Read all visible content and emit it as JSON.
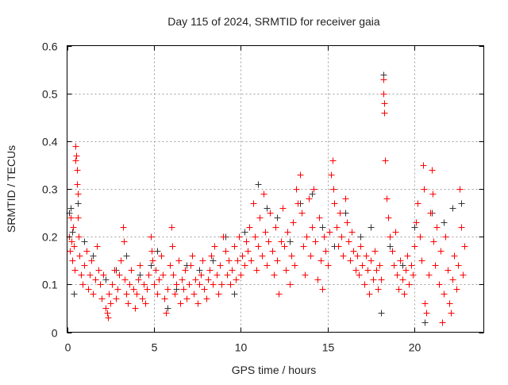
{
  "chart_data": {
    "type": "scatter",
    "title": "Day 115 of 2024, SRMTID for receiver gaia",
    "xlabel": "GPS time / hours",
    "ylabel": "SRMTID / TECUs",
    "xlim": [
      0,
      24
    ],
    "ylim": [
      0,
      0.6
    ],
    "xticks": [
      0,
      5,
      10,
      15,
      20
    ],
    "xtick_labels": [
      "0",
      "5",
      "10",
      "15",
      "20"
    ],
    "yticks": [
      0,
      0.1,
      0.2,
      0.3,
      0.4,
      0.5,
      0.6
    ],
    "ytick_labels": [
      "0",
      "0.1",
      "0.2",
      "0.3",
      "0.4",
      "0.5",
      "0.6"
    ],
    "grid": true,
    "marker": "plus",
    "series": [
      {
        "name": "red",
        "color": "#ff0000",
        "points": [
          [
            0.1,
            0.2
          ],
          [
            0.15,
            0.17
          ],
          [
            0.2,
            0.24
          ],
          [
            0.25,
            0.19
          ],
          [
            0.3,
            0.15
          ],
          [
            0.35,
            0.22
          ],
          [
            0.4,
            0.18
          ],
          [
            0.45,
            0.13
          ],
          [
            0.5,
            0.39
          ],
          [
            0.52,
            0.37
          ],
          [
            0.55,
            0.34
          ],
          [
            0.58,
            0.31
          ],
          [
            0.6,
            0.29
          ],
          [
            0.5,
            0.36
          ],
          [
            0.62,
            0.24
          ],
          [
            0.65,
            0.2
          ],
          [
            0.7,
            0.16
          ],
          [
            0.8,
            0.12
          ],
          [
            0.9,
            0.1
          ],
          [
            1.0,
            0.14
          ],
          [
            1.1,
            0.17
          ],
          [
            1.2,
            0.09
          ],
          [
            1.3,
            0.12
          ],
          [
            1.4,
            0.15
          ],
          [
            1.5,
            0.08
          ],
          [
            1.6,
            0.11
          ],
          [
            1.7,
            0.18
          ],
          [
            1.8,
            0.13
          ],
          [
            1.9,
            0.1
          ],
          [
            2.0,
            0.07
          ],
          [
            2.1,
            0.12
          ],
          [
            2.2,
            0.05
          ],
          [
            2.3,
            0.04
          ],
          [
            2.35,
            0.03
          ],
          [
            2.4,
            0.08
          ],
          [
            2.5,
            0.06
          ],
          [
            2.6,
            0.1
          ],
          [
            2.7,
            0.13
          ],
          [
            2.8,
            0.07
          ],
          [
            2.9,
            0.09
          ],
          [
            3.0,
            0.12
          ],
          [
            3.1,
            0.15
          ],
          [
            3.2,
            0.22
          ],
          [
            3.25,
            0.19
          ],
          [
            3.3,
            0.11
          ],
          [
            3.4,
            0.08
          ],
          [
            3.5,
            0.06
          ],
          [
            3.6,
            0.1
          ],
          [
            3.7,
            0.13
          ],
          [
            3.8,
            0.09
          ],
          [
            3.9,
            0.05
          ],
          [
            4.0,
            0.08
          ],
          [
            4.1,
            0.11
          ],
          [
            4.2,
            0.14
          ],
          [
            4.3,
            0.07
          ],
          [
            4.4,
            0.1
          ],
          [
            4.5,
            0.06
          ],
          [
            4.6,
            0.09
          ],
          [
            4.7,
            0.12
          ],
          [
            4.8,
            0.2
          ],
          [
            4.85,
            0.17
          ],
          [
            4.9,
            0.15
          ],
          [
            5.0,
            0.1
          ],
          [
            5.1,
            0.13
          ],
          [
            5.2,
            0.08
          ],
          [
            5.3,
            0.11
          ],
          [
            5.4,
            0.16
          ],
          [
            5.5,
            0.12
          ],
          [
            5.6,
            0.07
          ],
          [
            5.7,
            0.04
          ],
          [
            5.8,
            0.09
          ],
          [
            5.9,
            0.14
          ],
          [
            6.0,
            0.22
          ],
          [
            6.05,
            0.18
          ],
          [
            6.1,
            0.12
          ],
          [
            6.2,
            0.08
          ],
          [
            6.3,
            0.1
          ],
          [
            6.4,
            0.15
          ],
          [
            6.5,
            0.06
          ],
          [
            6.6,
            0.11
          ],
          [
            6.7,
            0.09
          ],
          [
            6.8,
            0.13
          ],
          [
            6.9,
            0.07
          ],
          [
            7.0,
            0.1
          ],
          [
            7.1,
            0.14
          ],
          [
            7.2,
            0.16
          ],
          [
            7.3,
            0.08
          ],
          [
            7.4,
            0.11
          ],
          [
            7.5,
            0.06
          ],
          [
            7.6,
            0.1
          ],
          [
            7.7,
            0.12
          ],
          [
            7.8,
            0.15
          ],
          [
            7.9,
            0.09
          ],
          [
            8.0,
            0.07
          ],
          [
            8.1,
            0.11
          ],
          [
            8.2,
            0.13
          ],
          [
            8.3,
            0.16
          ],
          [
            8.4,
            0.1
          ],
          [
            8.5,
            0.18
          ],
          [
            8.6,
            0.12
          ],
          [
            8.7,
            0.08
          ],
          [
            8.8,
            0.14
          ],
          [
            8.9,
            0.1
          ],
          [
            9.0,
            0.2
          ],
          [
            9.1,
            0.17
          ],
          [
            9.2,
            0.12
          ],
          [
            9.3,
            0.15
          ],
          [
            9.4,
            0.1
          ],
          [
            9.5,
            0.13
          ],
          [
            9.6,
            0.18
          ],
          [
            9.7,
            0.11
          ],
          [
            9.8,
            0.15
          ],
          [
            9.9,
            0.2
          ],
          [
            10.0,
            0.12
          ],
          [
            10.1,
            0.16
          ],
          [
            10.2,
            0.14
          ],
          [
            10.3,
            0.19
          ],
          [
            10.4,
            0.17
          ],
          [
            10.5,
            0.22
          ],
          [
            10.6,
            0.15
          ],
          [
            10.7,
            0.27
          ],
          [
            10.8,
            0.2
          ],
          [
            10.9,
            0.13
          ],
          [
            11.0,
            0.18
          ],
          [
            11.1,
            0.24
          ],
          [
            11.2,
            0.16
          ],
          [
            11.3,
            0.29
          ],
          [
            11.4,
            0.21
          ],
          [
            11.5,
            0.14
          ],
          [
            11.6,
            0.19
          ],
          [
            11.7,
            0.25
          ],
          [
            11.8,
            0.17
          ],
          [
            11.9,
            0.12
          ],
          [
            12.0,
            0.22
          ],
          [
            12.1,
            0.15
          ],
          [
            12.2,
            0.08
          ],
          [
            12.3,
            0.19
          ],
          [
            12.4,
            0.26
          ],
          [
            12.5,
            0.18
          ],
          [
            12.6,
            0.13
          ],
          [
            12.7,
            0.21
          ],
          [
            12.8,
            0.1
          ],
          [
            12.9,
            0.16
          ],
          [
            13.0,
            0.23
          ],
          [
            13.1,
            0.14
          ],
          [
            13.2,
            0.3
          ],
          [
            13.3,
            0.27
          ],
          [
            13.4,
            0.33
          ],
          [
            13.5,
            0.25
          ],
          [
            13.6,
            0.18
          ],
          [
            13.7,
            0.12
          ],
          [
            13.8,
            0.2
          ],
          [
            13.9,
            0.28
          ],
          [
            14.0,
            0.16
          ],
          [
            14.1,
            0.22
          ],
          [
            14.2,
            0.3
          ],
          [
            14.3,
            0.19
          ],
          [
            14.4,
            0.11
          ],
          [
            14.5,
            0.24
          ],
          [
            14.6,
            0.15
          ],
          [
            14.7,
            0.09
          ],
          [
            14.8,
            0.2
          ],
          [
            14.9,
            0.17
          ],
          [
            15.0,
            0.14
          ],
          [
            15.1,
            0.21
          ],
          [
            15.2,
            0.33
          ],
          [
            15.3,
            0.36
          ],
          [
            15.35,
            0.3
          ],
          [
            15.4,
            0.27
          ],
          [
            15.5,
            0.22
          ],
          [
            15.6,
            0.18
          ],
          [
            15.7,
            0.25
          ],
          [
            15.8,
            0.2
          ],
          [
            15.9,
            0.16
          ],
          [
            16.0,
            0.28
          ],
          [
            16.1,
            0.23
          ],
          [
            16.2,
            0.19
          ],
          [
            16.3,
            0.15
          ],
          [
            16.4,
            0.21
          ],
          [
            16.5,
            0.17
          ],
          [
            16.6,
            0.13
          ],
          [
            16.7,
            0.16
          ],
          [
            16.8,
            0.12
          ],
          [
            16.9,
            0.18
          ],
          [
            17.0,
            0.14
          ],
          [
            17.1,
            0.1
          ],
          [
            17.2,
            0.16
          ],
          [
            17.3,
            0.13
          ],
          [
            17.4,
            0.08
          ],
          [
            17.5,
            0.15
          ],
          [
            17.6,
            0.11
          ],
          [
            17.7,
            0.17
          ],
          [
            17.8,
            0.13
          ],
          [
            17.9,
            0.09
          ],
          [
            18.0,
            0.14
          ],
          [
            18.1,
            0.11
          ],
          [
            18.2,
            0.53
          ],
          [
            18.22,
            0.5
          ],
          [
            18.25,
            0.48
          ],
          [
            18.27,
            0.46
          ],
          [
            18.3,
            0.36
          ],
          [
            18.4,
            0.28
          ],
          [
            18.5,
            0.24
          ],
          [
            18.6,
            0.2
          ],
          [
            18.7,
            0.17
          ],
          [
            18.8,
            0.14
          ],
          [
            18.9,
            0.21
          ],
          [
            19.0,
            0.12
          ],
          [
            19.1,
            0.09
          ],
          [
            19.2,
            0.15
          ],
          [
            19.3,
            0.11
          ],
          [
            19.4,
            0.08
          ],
          [
            19.5,
            0.13
          ],
          [
            19.6,
            0.16
          ],
          [
            19.7,
            0.1
          ],
          [
            19.8,
            0.14
          ],
          [
            19.9,
            0.12
          ],
          [
            20.0,
            0.18
          ],
          [
            20.1,
            0.23
          ],
          [
            20.2,
            0.27
          ],
          [
            20.3,
            0.2
          ],
          [
            20.4,
            0.15
          ],
          [
            20.5,
            0.35
          ],
          [
            20.55,
            0.3
          ],
          [
            20.6,
            0.06
          ],
          [
            20.7,
            0.04
          ],
          [
            20.8,
            0.12
          ],
          [
            20.9,
            0.25
          ],
          [
            21.0,
            0.34
          ],
          [
            21.05,
            0.29
          ],
          [
            21.1,
            0.19
          ],
          [
            21.2,
            0.14
          ],
          [
            21.3,
            0.22
          ],
          [
            21.4,
            0.1
          ],
          [
            21.5,
            0.17
          ],
          [
            21.6,
            0.02
          ],
          [
            21.7,
            0.08
          ],
          [
            21.8,
            0.2
          ],
          [
            21.9,
            0.13
          ],
          [
            22.0,
            0.06
          ],
          [
            22.1,
            0.04
          ],
          [
            22.2,
            0.11
          ],
          [
            22.3,
            0.16
          ],
          [
            22.4,
            0.09
          ],
          [
            22.5,
            0.14
          ],
          [
            22.6,
            0.3
          ],
          [
            22.7,
            0.22
          ],
          [
            22.8,
            0.12
          ],
          [
            22.9,
            0.18
          ]
        ]
      },
      {
        "name": "gray",
        "color": "#333333",
        "points": [
          [
            0.1,
            0.25
          ],
          [
            0.2,
            0.26
          ],
          [
            0.3,
            0.21
          ],
          [
            0.4,
            0.08
          ],
          [
            0.6,
            0.27
          ],
          [
            1.0,
            0.19
          ],
          [
            1.5,
            0.16
          ],
          [
            2.2,
            0.11
          ],
          [
            2.8,
            0.13
          ],
          [
            3.4,
            0.16
          ],
          [
            4.2,
            0.12
          ],
          [
            4.8,
            0.14
          ],
          [
            5.2,
            0.17
          ],
          [
            5.8,
            0.05
          ],
          [
            6.3,
            0.09
          ],
          [
            6.9,
            0.14
          ],
          [
            7.6,
            0.13
          ],
          [
            8.4,
            0.15
          ],
          [
            9.1,
            0.2
          ],
          [
            9.6,
            0.08
          ],
          [
            10.2,
            0.21
          ],
          [
            11.0,
            0.31
          ],
          [
            11.5,
            0.26
          ],
          [
            12.1,
            0.24
          ],
          [
            12.8,
            0.19
          ],
          [
            13.4,
            0.27
          ],
          [
            14.1,
            0.29
          ],
          [
            14.7,
            0.22
          ],
          [
            15.4,
            0.18
          ],
          [
            16.0,
            0.25
          ],
          [
            16.9,
            0.2
          ],
          [
            17.5,
            0.22
          ],
          [
            18.1,
            0.04
          ],
          [
            18.2,
            0.54
          ],
          [
            18.6,
            0.18
          ],
          [
            19.3,
            0.14
          ],
          [
            20.0,
            0.22
          ],
          [
            20.6,
            0.02
          ],
          [
            21.0,
            0.25
          ],
          [
            21.7,
            0.23
          ],
          [
            22.2,
            0.26
          ],
          [
            22.7,
            0.27
          ]
        ]
      }
    ]
  }
}
